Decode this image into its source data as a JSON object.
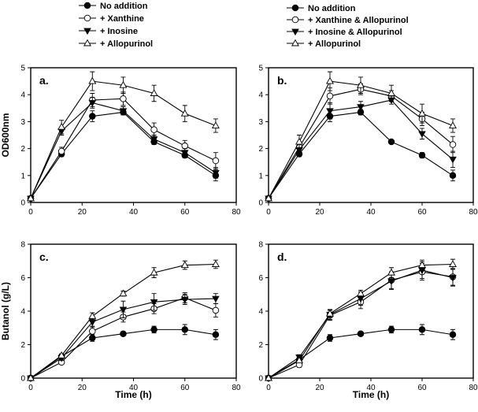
{
  "chart_data": [
    {
      "type": "line",
      "panel_label": "a.",
      "xlabel": "",
      "ylabel": "OD600nm",
      "xlim": [
        0,
        80
      ],
      "ylim": [
        0,
        5
      ],
      "xticks": [
        "0",
        "20",
        "40",
        "60",
        "80"
      ],
      "yticks": [
        "0",
        "1",
        "2",
        "3",
        "4",
        "5"
      ],
      "x": [
        0,
        12,
        24,
        36,
        48,
        60,
        72
      ],
      "legend": [
        "No addition",
        "+ Xanthine",
        "+ Inosine",
        "+ Allopurinol"
      ],
      "series": [
        {
          "name": "No addition",
          "marker": "circle-filled",
          "values": [
            0.15,
            1.8,
            3.2,
            3.35,
            2.25,
            1.75,
            1.0
          ],
          "errors": [
            0.05,
            0.1,
            0.2,
            0.1,
            0.1,
            0.1,
            0.2
          ]
        },
        {
          "name": "+ Xanthine",
          "marker": "circle-open",
          "values": [
            0.15,
            1.9,
            3.8,
            3.85,
            2.7,
            2.1,
            1.55
          ],
          "errors": [
            0.05,
            0.15,
            0.25,
            0.25,
            0.25,
            0.2,
            0.3
          ]
        },
        {
          "name": "+ Inosine",
          "marker": "triangle-down-filled",
          "values": [
            0.15,
            2.65,
            3.7,
            3.4,
            2.35,
            1.85,
            1.1
          ],
          "errors": [
            0.05,
            0.15,
            0.2,
            0.15,
            0.15,
            0.15,
            0.2
          ]
        },
        {
          "name": "+ Allopurinol",
          "marker": "triangle-up-open",
          "values": [
            0.15,
            2.8,
            4.5,
            4.35,
            4.05,
            3.3,
            2.85
          ],
          "errors": [
            0.05,
            0.25,
            0.35,
            0.3,
            0.3,
            0.3,
            0.25
          ]
        }
      ]
    },
    {
      "type": "line",
      "panel_label": "b.",
      "xlabel": "",
      "ylabel": "",
      "xlim": [
        0,
        80
      ],
      "ylim": [
        0,
        5
      ],
      "xticks": [
        "0",
        "20",
        "40",
        "60",
        "80"
      ],
      "yticks": [
        "0",
        "1",
        "2",
        "3",
        "4",
        "5"
      ],
      "x": [
        0,
        12,
        24,
        36,
        48,
        60,
        72
      ],
      "legend": [
        "No addition",
        "+ Xanthine & Allopurinol",
        "+ Inosine & Allopurinol",
        "+ Allopurinol"
      ],
      "series": [
        {
          "name": "No addition",
          "marker": "circle-filled",
          "values": [
            0.15,
            1.8,
            3.2,
            3.35,
            2.25,
            1.75,
            1.0
          ],
          "errors": [
            0.05,
            0.1,
            0.2,
            0.1,
            0.05,
            0.1,
            0.2
          ]
        },
        {
          "name": "+ Xanthine & Allopurinol",
          "marker": "circle-open",
          "values": [
            0.15,
            2.05,
            3.95,
            4.2,
            3.95,
            3.1,
            2.15
          ],
          "errors": [
            0.05,
            0.2,
            0.3,
            0.2,
            0.2,
            0.25,
            0.3
          ]
        },
        {
          "name": "+ Inosine & Allopurinol",
          "marker": "triangle-down-filled",
          "values": [
            0.15,
            1.95,
            3.4,
            3.55,
            3.8,
            2.55,
            1.6
          ],
          "errors": [
            0.05,
            0.2,
            0.3,
            0.2,
            0.15,
            0.2,
            0.3
          ]
        },
        {
          "name": "+ Allopurinol",
          "marker": "triangle-up-open",
          "values": [
            0.15,
            2.25,
            4.5,
            4.35,
            4.05,
            3.3,
            2.85
          ],
          "errors": [
            0.05,
            0.25,
            0.35,
            0.3,
            0.3,
            0.35,
            0.25
          ]
        }
      ]
    },
    {
      "type": "line",
      "panel_label": "c.",
      "xlabel": "Time (h)",
      "ylabel": "Butanol (g/L)",
      "xlim": [
        0,
        80
      ],
      "ylim": [
        0,
        8
      ],
      "xticks": [
        "0",
        "20",
        "40",
        "60",
        "80"
      ],
      "yticks": [
        "0",
        "2",
        "4",
        "6",
        "8"
      ],
      "x": [
        0,
        12,
        24,
        36,
        48,
        60,
        72
      ],
      "series": [
        {
          "name": "No addition",
          "marker": "circle-filled",
          "values": [
            0,
            1.3,
            2.4,
            2.65,
            2.9,
            2.9,
            2.6
          ],
          "errors": [
            0,
            0.1,
            0.2,
            0.1,
            0.2,
            0.3,
            0.3
          ]
        },
        {
          "name": "+ Xanthine",
          "marker": "circle-open",
          "values": [
            0,
            0.95,
            2.8,
            3.65,
            4.15,
            4.8,
            4.05
          ],
          "errors": [
            0,
            0.1,
            0.3,
            0.3,
            0.3,
            0.3,
            0.4
          ]
        },
        {
          "name": "+ Inosine",
          "marker": "triangle-down-filled",
          "values": [
            0,
            1.2,
            3.35,
            4.1,
            4.55,
            4.7,
            4.75
          ],
          "errors": [
            0,
            0.15,
            0.3,
            0.5,
            0.5,
            0.3,
            0.3
          ]
        },
        {
          "name": "+ Allopurinol",
          "marker": "triangle-up-open",
          "values": [
            0,
            1.35,
            3.7,
            5.05,
            6.3,
            6.75,
            6.8
          ],
          "errors": [
            0,
            0.1,
            0.2,
            0.15,
            0.3,
            0.25,
            0.25
          ]
        }
      ]
    },
    {
      "type": "line",
      "panel_label": "d.",
      "xlabel": "Time (h)",
      "ylabel": "",
      "xlim": [
        0,
        80
      ],
      "ylim": [
        0,
        8
      ],
      "xticks": [
        "0",
        "20",
        "40",
        "60",
        "80"
      ],
      "yticks": [
        "0",
        "2",
        "4",
        "6",
        "8"
      ],
      "x": [
        0,
        12,
        24,
        36,
        48,
        60,
        72
      ],
      "series": [
        {
          "name": "No addition",
          "marker": "circle-filled",
          "values": [
            0,
            1.1,
            2.4,
            2.65,
            2.9,
            2.9,
            2.6
          ],
          "errors": [
            0,
            0.1,
            0.2,
            0.1,
            0.2,
            0.3,
            0.3
          ]
        },
        {
          "name": "+ Xanthine & Allopurinol",
          "marker": "circle-open",
          "values": [
            0,
            0.8,
            3.75,
            4.55,
            5.85,
            6.35,
            6.05
          ],
          "errors": [
            0,
            0.15,
            0.3,
            0.4,
            0.5,
            0.5,
            0.5
          ]
        },
        {
          "name": "+ Inosine & Allopurinol",
          "marker": "triangle-down-filled",
          "values": [
            0,
            1.25,
            3.8,
            4.75,
            5.8,
            6.45,
            6.0
          ],
          "errors": [
            0,
            0.15,
            0.3,
            0.4,
            0.5,
            0.5,
            0.5
          ]
        },
        {
          "name": "+ Allopurinol",
          "marker": "triangle-up-open",
          "values": [
            0,
            1.05,
            3.85,
            5.05,
            6.3,
            6.75,
            6.8
          ],
          "errors": [
            0,
            0.1,
            0.2,
            0.2,
            0.3,
            0.3,
            0.3
          ]
        }
      ]
    }
  ]
}
